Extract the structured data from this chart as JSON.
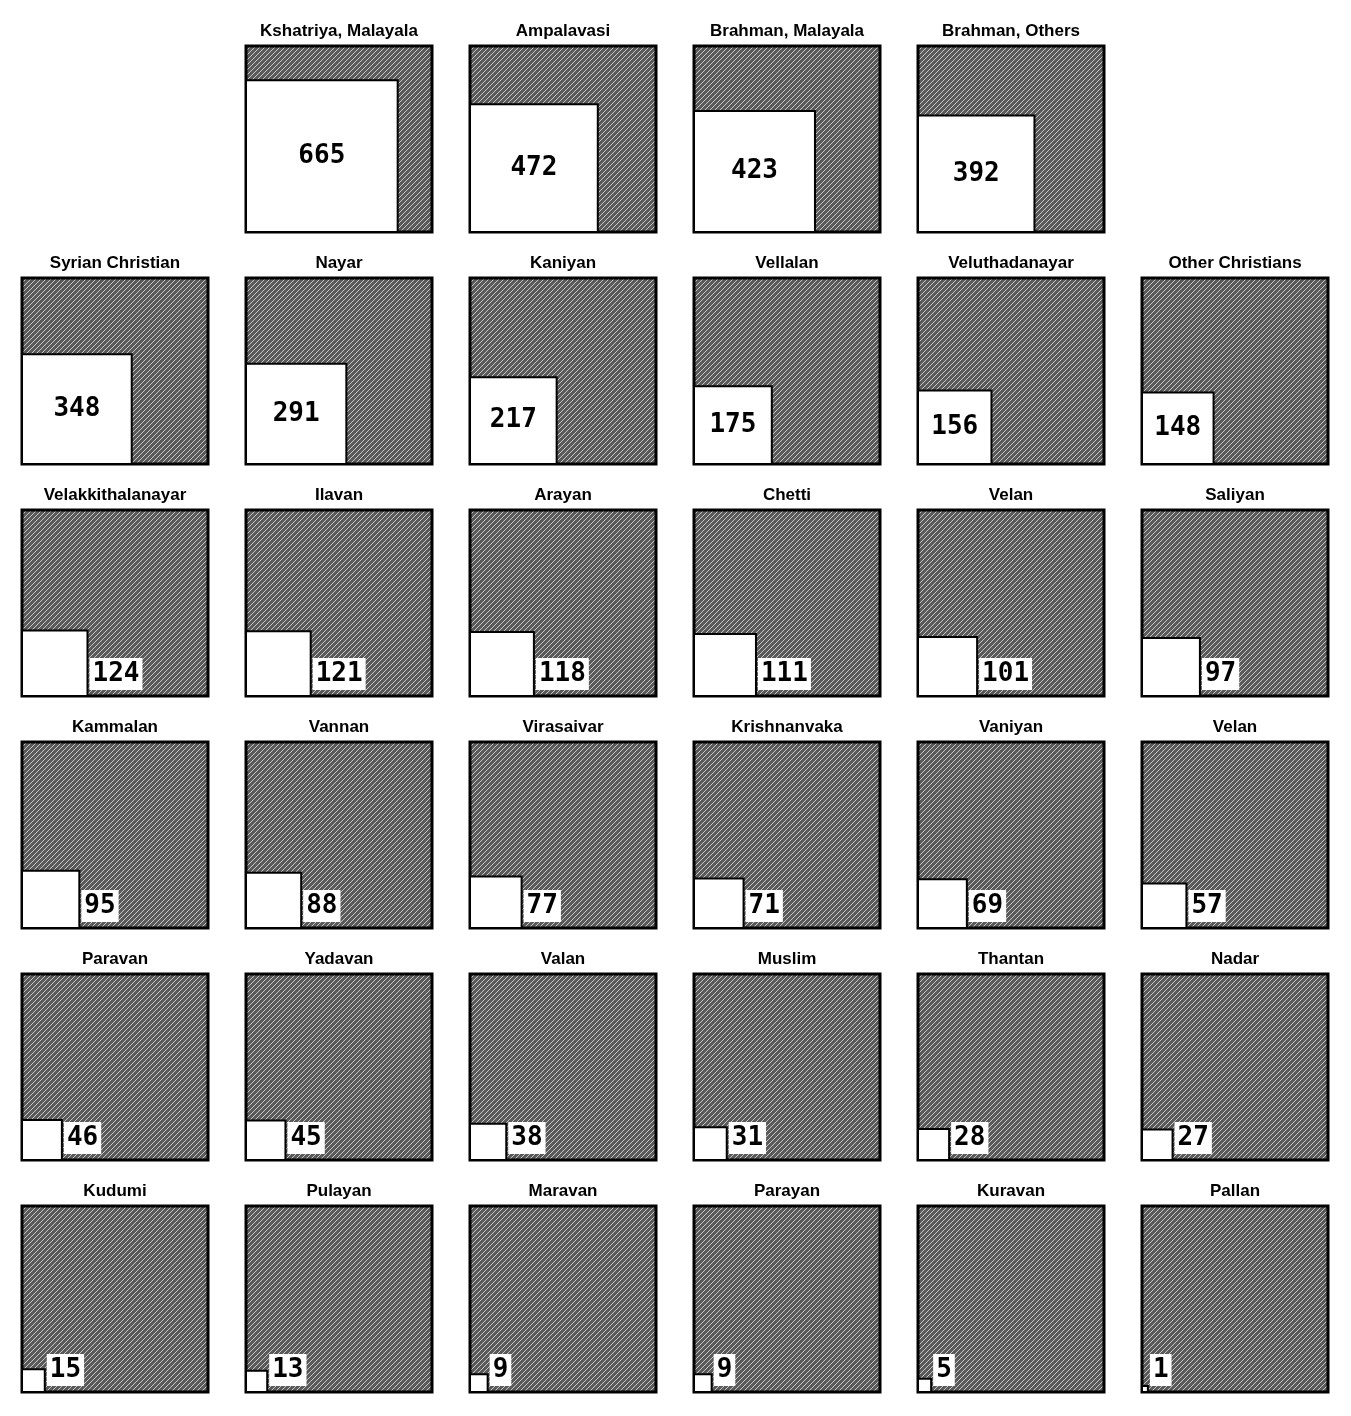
{
  "chart_data": [
    {
      "type": "other",
      "title": "Kshatriya, Malayala",
      "values": [
        665
      ],
      "color": "#ffffff",
      "data_labels": true
    },
    {
      "type": "other",
      "title": "Ampalavasi",
      "values": [
        472
      ],
      "color": "#ffffff",
      "data_labels": true
    },
    {
      "type": "other",
      "title": "Brahman, Malayala",
      "values": [
        423
      ],
      "color": "#ffffff",
      "data_labels": true
    },
    {
      "type": "other",
      "title": "Brahman, Others",
      "values": [
        392
      ],
      "color": "#ffffff",
      "data_labels": true
    },
    {
      "type": "other",
      "title": "Syrian Christian",
      "values": [
        348
      ],
      "color": "#ffffff",
      "data_labels": true
    },
    {
      "type": "other",
      "title": "Nayar",
      "values": [
        291
      ],
      "color": "#ffffff",
      "data_labels": true
    },
    {
      "type": "other",
      "title": "Kaniyan",
      "values": [
        217
      ],
      "color": "#ffffff",
      "data_labels": true
    },
    {
      "type": "other",
      "title": "Vellalan",
      "values": [
        175
      ],
      "color": "#ffffff",
      "data_labels": true
    },
    {
      "type": "other",
      "title": "Veluthadanayar",
      "values": [
        156
      ],
      "color": "#ffffff",
      "data_labels": true
    },
    {
      "type": "other",
      "title": "Other Christians",
      "values": [
        148
      ],
      "color": "#ffffff",
      "data_labels": true
    },
    {
      "type": "other",
      "title": "Velakkithalanayar",
      "values": [
        124
      ],
      "color": "#ffffff",
      "data_labels": true
    },
    {
      "type": "other",
      "title": "Ilavan",
      "values": [
        121
      ],
      "color": "#ffffff",
      "data_labels": true
    },
    {
      "type": "other",
      "title": "Arayan",
      "values": [
        118
      ],
      "color": "#ffffff",
      "data_labels": true
    },
    {
      "type": "other",
      "title": "Chetti",
      "values": [
        111
      ],
      "color": "#ffffff",
      "data_labels": true
    },
    {
      "type": "other",
      "title": "Velan",
      "values": [
        101
      ],
      "color": "#ffffff",
      "data_labels": true
    },
    {
      "type": "other",
      "title": "Saliyan",
      "values": [
        97
      ],
      "color": "#ffffff",
      "data_labels": true
    },
    {
      "type": "other",
      "title": "Kammalan",
      "values": [
        95
      ],
      "color": "#ffffff",
      "data_labels": true
    },
    {
      "type": "other",
      "title": "Vannan",
      "values": [
        88
      ],
      "color": "#ffffff",
      "data_labels": true
    },
    {
      "type": "other",
      "title": "Virasaivar",
      "values": [
        77
      ],
      "color": "#ffffff",
      "data_labels": true
    },
    {
      "type": "other",
      "title": "Krishnanvaka",
      "values": [
        71
      ],
      "color": "#ffffff",
      "data_labels": true
    },
    {
      "type": "other",
      "title": "Vaniyan",
      "values": [
        69
      ],
      "color": "#ffffff",
      "data_labels": true
    },
    {
      "type": "other",
      "title": "Velan",
      "values": [
        57
      ],
      "color": "#ffffff",
      "data_labels": true
    },
    {
      "type": "other",
      "title": "Paravan",
      "values": [
        46
      ],
      "color": "#ffffff",
      "data_labels": true
    },
    {
      "type": "other",
      "title": "Yadavan",
      "values": [
        45
      ],
      "color": "#ffffff",
      "data_labels": true
    },
    {
      "type": "other",
      "title": "Valan",
      "values": [
        38
      ],
      "color": "#ffffff",
      "data_labels": true
    },
    {
      "type": "other",
      "title": "Muslim",
      "values": [
        31
      ],
      "color": "#ffffff",
      "data_labels": true
    },
    {
      "type": "other",
      "title": "Thantan",
      "values": [
        28
      ],
      "color": "#ffffff",
      "data_labels": true
    },
    {
      "type": "other",
      "title": "Nadar",
      "values": [
        27
      ],
      "color": "#ffffff",
      "data_labels": true
    },
    {
      "type": "other",
      "title": "Kudumi",
      "values": [
        15
      ],
      "color": "#ffffff",
      "data_labels": true
    },
    {
      "type": "other",
      "title": "Pulayan",
      "values": [
        13
      ],
      "color": "#ffffff",
      "data_labels": true
    },
    {
      "type": "other",
      "title": "Maravan",
      "values": [
        9
      ],
      "color": "#ffffff",
      "data_labels": true
    },
    {
      "type": "other",
      "title": "Parayan",
      "values": [
        9
      ],
      "color": "#ffffff",
      "data_labels": true
    },
    {
      "type": "other",
      "title": "Kuravan",
      "values": [
        5
      ],
      "color": "#ffffff",
      "data_labels": true
    },
    {
      "type": "other",
      "title": "Pallan",
      "values": [
        1
      ],
      "color": "#ffffff",
      "data_labels": true
    }
  ]
}
